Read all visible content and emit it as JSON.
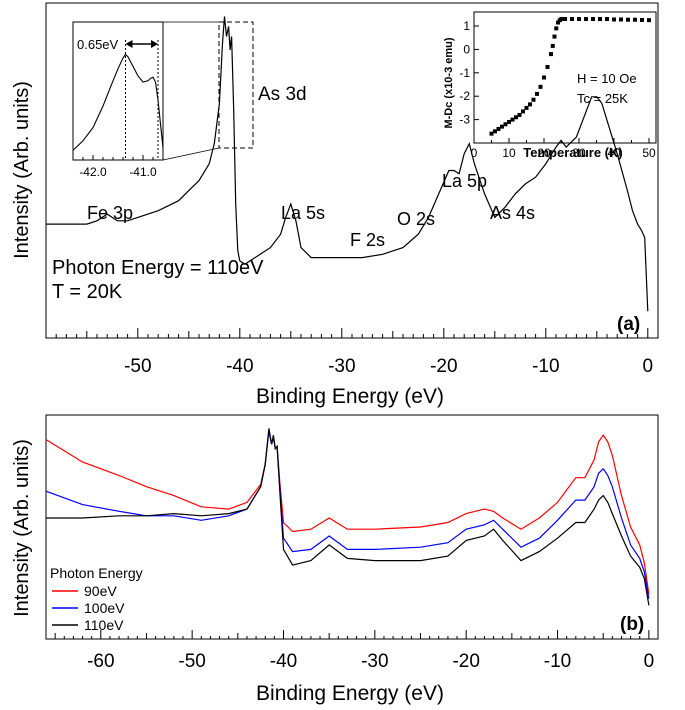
{
  "chart_data": [
    {
      "type": "line",
      "panel_label": "(a)",
      "xlabel": "Binding Energy (eV)",
      "ylabel": "Intensity (Arb. units)",
      "xlim": [
        -59,
        1
      ],
      "ylim": [
        0,
        100
      ],
      "x_ticks": [
        -50,
        -40,
        -30,
        -20,
        -10,
        0
      ],
      "x_ticks_labels": [
        "-50",
        "-40",
        "-30",
        "-20",
        "-10",
        "0"
      ],
      "conditions": [
        "Photon Energy = 110eV",
        "T = 20K"
      ],
      "series": [
        {
          "name": "",
          "color": "#000000",
          "x": [
            -59,
            -57,
            -55,
            -54,
            -53,
            -52,
            -51,
            -50,
            -48,
            -46,
            -45,
            -44,
            -43,
            -42.5,
            -42,
            -41.7,
            -41.5,
            -41.3,
            -41.1,
            -40.95,
            -40.8,
            -40.6,
            -40.4,
            -40.2,
            -40,
            -39.5,
            -39,
            -38,
            -37,
            -36,
            -35.5,
            -35,
            -34.5,
            -34,
            -33,
            -32,
            -30,
            -28,
            -26,
            -24,
            -22.5,
            -21.5,
            -20.5,
            -19.5,
            -19,
            -18.5,
            -18,
            -17.5,
            -17,
            -16,
            -15,
            -14,
            -13,
            -12,
            -11,
            -10,
            -9,
            -8.5,
            -8,
            -7,
            -6,
            -5.5,
            -5,
            -4.5,
            -4,
            -3,
            -2,
            -1.5,
            -1,
            -0.6,
            -0.3,
            0
          ],
          "y": [
            34,
            34,
            34,
            35,
            37,
            35,
            35,
            36,
            38,
            41,
            44,
            47,
            52,
            58,
            70,
            88,
            96,
            90,
            93,
            86,
            90,
            68,
            40,
            26,
            23,
            22,
            23,
            25,
            27,
            31,
            36,
            40,
            35,
            27,
            24,
            24,
            24,
            24,
            25,
            27,
            31,
            36,
            43,
            50,
            50,
            49,
            55,
            58,
            52,
            43,
            36,
            39,
            43,
            46,
            48,
            52,
            57,
            59,
            57,
            60,
            68,
            72,
            72,
            70,
            65,
            55,
            44,
            38,
            34,
            32,
            30,
            8
          ]
        }
      ],
      "peak_labels": [
        "Fe 3p",
        "As 3d",
        "La 5s",
        "F 2s",
        "O 2s",
        "La 5p",
        "As 4s"
      ],
      "inset_zoom": {
        "type": "line",
        "xlim": [
          -42.4,
          -40.6
        ],
        "x_ticks": [
          -42.0,
          -41.0
        ],
        "x_ticks_labels": [
          "-42.0",
          "-41.0"
        ],
        "annotation": "0.65eV",
        "marker_lines_x": [
          -41.35,
          -40.7
        ],
        "x": [
          -42.4,
          -42.2,
          -42.0,
          -41.8,
          -41.6,
          -41.5,
          -41.4,
          -41.35,
          -41.3,
          -41.2,
          -41.1,
          -41.0,
          -40.9,
          -40.85,
          -40.8,
          -40.75,
          -40.7,
          -40.65,
          -40.6
        ],
        "y": [
          8,
          16,
          27,
          45,
          66,
          76,
          85,
          88,
          86,
          78,
          70,
          65,
          66,
          68,
          69,
          65,
          50,
          30,
          10
        ]
      },
      "inset_magnetization": {
        "type": "scatter",
        "xlabel": "Temperature (K)",
        "ylabel": "M-Dc (x10-3 emu)",
        "xlim": [
          0,
          52
        ],
        "ylim": [
          -4,
          1.6
        ],
        "x_ticks": [
          0,
          10,
          20,
          30,
          40,
          50
        ],
        "x_ticks_labels": [
          "0",
          "10",
          "20",
          "30",
          "40",
          "50"
        ],
        "y_ticks": [
          1,
          0,
          -1,
          -2,
          -3
        ],
        "y_ticks_labels": [
          "1",
          "0",
          "-1",
          "-2",
          "-3"
        ],
        "annotations": [
          "H = 10 Oe",
          "Tc = 25K"
        ],
        "x": [
          5,
          6,
          7,
          8,
          9,
          10,
          11,
          12,
          13,
          14,
          15,
          16,
          17,
          18,
          19,
          20,
          21,
          22,
          22.5,
          23,
          23.5,
          24,
          24.5,
          25,
          26,
          28,
          30,
          32,
          34,
          36,
          38,
          40,
          42,
          44,
          46,
          48,
          50
        ],
        "y": [
          -3.6,
          -3.5,
          -3.4,
          -3.3,
          -3.2,
          -3.1,
          -3.0,
          -2.9,
          -2.8,
          -2.65,
          -2.5,
          -2.35,
          -2.15,
          -1.9,
          -1.6,
          -1.2,
          -0.75,
          -0.2,
          0.15,
          0.55,
          0.9,
          1.15,
          1.25,
          1.3,
          1.3,
          1.3,
          1.3,
          1.3,
          1.3,
          1.3,
          1.3,
          1.28,
          1.28,
          1.27,
          1.27,
          1.26,
          1.25
        ]
      }
    },
    {
      "type": "line",
      "panel_label": "(b)",
      "xlabel": "Binding Energy (eV)",
      "ylabel": "Intensity (Arb. units)",
      "xlim": [
        -66,
        1
      ],
      "ylim": [
        0,
        100
      ],
      "x_ticks": [
        -60,
        -50,
        -40,
        -30,
        -20,
        -10,
        0
      ],
      "x_ticks_labels": [
        "-60",
        "-50",
        "-40",
        "-30",
        "-20",
        "-10",
        "0"
      ],
      "legend_title": "Photon Energy",
      "legend_placement": "bottom-left",
      "series": [
        {
          "name": "90eV",
          "color": "#ff0000",
          "x": [
            -66,
            -62,
            -58,
            -55,
            -52,
            -49,
            -46,
            -44,
            -42.5,
            -42,
            -41.6,
            -41.3,
            -41.1,
            -40.9,
            -40.7,
            -40.4,
            -40,
            -39,
            -37,
            -35,
            -33,
            -30,
            -25,
            -22,
            -20,
            -18,
            -17,
            -16,
            -14,
            -12,
            -10,
            -8,
            -7,
            -6,
            -5.5,
            -5,
            -4.5,
            -4,
            -3,
            -2,
            -1,
            -0.5,
            0
          ],
          "y": [
            89,
            79,
            73,
            68,
            64,
            59,
            58,
            61,
            69,
            78,
            93,
            87,
            90,
            85,
            86,
            70,
            52,
            48,
            49,
            54,
            49,
            49,
            50,
            52,
            56,
            58,
            57,
            54,
            49,
            54,
            61,
            72,
            72,
            80,
            88,
            91,
            88,
            82,
            64,
            50,
            42,
            34,
            20
          ]
        },
        {
          "name": "100eV",
          "color": "#0000ff",
          "x": [
            -66,
            -62,
            -58,
            -55,
            -52,
            -49,
            -46,
            -44,
            -42.5,
            -42,
            -41.6,
            -41.3,
            -41.1,
            -40.9,
            -40.7,
            -40.4,
            -40,
            -39,
            -37,
            -35,
            -33,
            -30,
            -25,
            -22,
            -20,
            -18,
            -17,
            -16,
            -14,
            -12,
            -10,
            -8,
            -7,
            -6,
            -5.5,
            -5,
            -4.5,
            -4,
            -3,
            -2,
            -1,
            -0.5,
            0
          ],
          "y": [
            66,
            60,
            57,
            55,
            55,
            53,
            55,
            58,
            68,
            78,
            93,
            87,
            90,
            85,
            86,
            68,
            45,
            39,
            40,
            46,
            40,
            40,
            41,
            43,
            49,
            51,
            53,
            49,
            41,
            45,
            53,
            62,
            62,
            68,
            74,
            76,
            73,
            68,
            54,
            42,
            36,
            30,
            18
          ]
        },
        {
          "name": "110eV",
          "color": "#000000",
          "x": [
            -66,
            -62,
            -58,
            -55,
            -52,
            -49,
            -46,
            -44,
            -42.5,
            -42,
            -41.6,
            -41.3,
            -41.1,
            -40.9,
            -40.7,
            -40.4,
            -40,
            -39,
            -37,
            -35,
            -33,
            -30,
            -25,
            -22,
            -20,
            -18,
            -17,
            -16,
            -14,
            -12,
            -10,
            -8,
            -7,
            -6,
            -5.5,
            -5,
            -4.5,
            -4,
            -3,
            -2,
            -1,
            -0.5,
            0
          ],
          "y": [
            54,
            54,
            55,
            55,
            56,
            55,
            56,
            58,
            68,
            78,
            94,
            87,
            91,
            85,
            86,
            66,
            40,
            33,
            35,
            42,
            36,
            35,
            35,
            37,
            44,
            46,
            49,
            44,
            35,
            39,
            45,
            52,
            52,
            58,
            62,
            64,
            61,
            56,
            46,
            37,
            32,
            27,
            15
          ]
        }
      ]
    }
  ]
}
